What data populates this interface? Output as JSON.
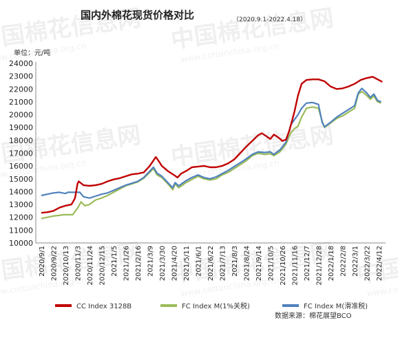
{
  "chart_data": {
    "type": "line",
    "title": "国内外棉花现货价格对比",
    "subtitle": "（2020.9.1-2022.4.18）",
    "ylabel": "单位：元/吨",
    "ylim": [
      10000,
      24000
    ],
    "yticks": [
      10000,
      11000,
      12000,
      13000,
      14000,
      15000,
      16000,
      17000,
      18000,
      19000,
      20000,
      21000,
      22000,
      23000,
      24000
    ],
    "x_tick_labels": [
      "2020/9/1",
      "2020/9/22",
      "2020/10/13",
      "2020/11/3",
      "2020/11/24",
      "2020/12/15",
      "2021/1/5",
      "2021/1/26",
      "2021/2/16",
      "2021/3/9",
      "2021/3/30",
      "2021/4/20",
      "2021/5/11",
      "2021/6/1",
      "2021/6/22",
      "2021/7/13",
      "2021/8/3",
      "2021/8/24",
      "2021/9/14",
      "2021/10/5",
      "2021/10/26",
      "2021/11/16",
      "2021/12/7",
      "2021/12/28",
      "2022/1/18",
      "2022/2/8",
      "2022/3/1",
      "2022/3/22",
      "2022/4/12"
    ],
    "legend_position": "bottom",
    "grid": false,
    "series": [
      {
        "name": "CC Index 3128B",
        "color": "#c00000",
        "points": [
          [
            0,
            12350
          ],
          [
            0.5,
            12400
          ],
          [
            1,
            12500
          ],
          [
            1.5,
            12750
          ],
          [
            2,
            12900
          ],
          [
            2.5,
            13000
          ],
          [
            2.8,
            13500
          ],
          [
            3,
            14600
          ],
          [
            3.1,
            14800
          ],
          [
            3.5,
            14500
          ],
          [
            4,
            14450
          ],
          [
            4.5,
            14500
          ],
          [
            5,
            14600
          ],
          [
            5.5,
            14800
          ],
          [
            6,
            14950
          ],
          [
            6.5,
            15050
          ],
          [
            7,
            15200
          ],
          [
            7.5,
            15350
          ],
          [
            8,
            15400
          ],
          [
            8.5,
            15500
          ],
          [
            9,
            16000
          ],
          [
            9.5,
            16700
          ],
          [
            9.8,
            16300
          ],
          [
            10,
            16000
          ],
          [
            10.5,
            15600
          ],
          [
            11,
            15300
          ],
          [
            11.3,
            15100
          ],
          [
            11.6,
            15400
          ],
          [
            12,
            15600
          ],
          [
            12.5,
            15900
          ],
          [
            13,
            15950
          ],
          [
            13.5,
            16000
          ],
          [
            14,
            15900
          ],
          [
            14.5,
            15900
          ],
          [
            15,
            16000
          ],
          [
            15.5,
            16200
          ],
          [
            16,
            16500
          ],
          [
            16.5,
            17000
          ],
          [
            17,
            17500
          ],
          [
            17.5,
            17950
          ],
          [
            18,
            18400
          ],
          [
            18.3,
            18550
          ],
          [
            18.7,
            18300
          ],
          [
            19,
            18100
          ],
          [
            19.3,
            18450
          ],
          [
            19.7,
            18200
          ],
          [
            20,
            17950
          ],
          [
            20.3,
            18050
          ],
          [
            20.6,
            18800
          ],
          [
            21,
            20200
          ],
          [
            21.3,
            21500
          ],
          [
            21.6,
            22400
          ],
          [
            22,
            22700
          ],
          [
            22.5,
            22750
          ],
          [
            23,
            22750
          ],
          [
            23.5,
            22600
          ],
          [
            24,
            22200
          ],
          [
            24.5,
            22000
          ],
          [
            25,
            22050
          ],
          [
            25.5,
            22200
          ],
          [
            26,
            22400
          ],
          [
            26.5,
            22700
          ],
          [
            27,
            22850
          ],
          [
            27.5,
            22950
          ],
          [
            28,
            22700
          ],
          [
            28.3,
            22550
          ]
        ]
      },
      {
        "name": "FC Index M(1%关税)",
        "color": "#9bbb59",
        "points": [
          [
            0,
            11900
          ],
          [
            0.5,
            12000
          ],
          [
            1,
            12100
          ],
          [
            1.5,
            12150
          ],
          [
            1.8,
            12200
          ],
          [
            2.6,
            12200
          ],
          [
            3,
            12700
          ],
          [
            3.3,
            13200
          ],
          [
            3.6,
            12900
          ],
          [
            4,
            13000
          ],
          [
            4.5,
            13350
          ],
          [
            5,
            13500
          ],
          [
            5.5,
            13700
          ],
          [
            6,
            13950
          ],
          [
            6.5,
            14200
          ],
          [
            7,
            14450
          ],
          [
            7.5,
            14600
          ],
          [
            8,
            14750
          ],
          [
            8.5,
            15050
          ],
          [
            9,
            15500
          ],
          [
            9.3,
            15800
          ],
          [
            9.6,
            15300
          ],
          [
            10,
            15100
          ],
          [
            10.3,
            14800
          ],
          [
            10.6,
            14500
          ],
          [
            10.9,
            14150
          ],
          [
            11.1,
            14600
          ],
          [
            11.4,
            14300
          ],
          [
            11.7,
            14500
          ],
          [
            12,
            14700
          ],
          [
            12.5,
            14950
          ],
          [
            13,
            15200
          ],
          [
            13.5,
            15000
          ],
          [
            14,
            14900
          ],
          [
            14.5,
            15000
          ],
          [
            15,
            15300
          ],
          [
            15.5,
            15500
          ],
          [
            16,
            15800
          ],
          [
            16.5,
            16100
          ],
          [
            17,
            16400
          ],
          [
            17.5,
            16800
          ],
          [
            18,
            17000
          ],
          [
            18.5,
            16900
          ],
          [
            19,
            16950
          ],
          [
            19.3,
            16800
          ],
          [
            19.8,
            17100
          ],
          [
            20.3,
            17700
          ],
          [
            20.7,
            18600
          ],
          [
            21,
            18900
          ],
          [
            21.3,
            19100
          ],
          [
            21.6,
            19800
          ],
          [
            22,
            20500
          ],
          [
            22.5,
            20600
          ],
          [
            23,
            20500
          ],
          [
            23.3,
            19500
          ],
          [
            23.5,
            19000
          ],
          [
            24,
            19350
          ],
          [
            24.5,
            19700
          ],
          [
            25,
            19900
          ],
          [
            25.5,
            20200
          ],
          [
            26,
            20500
          ],
          [
            26.3,
            21600
          ],
          [
            26.6,
            21800
          ],
          [
            27,
            21500
          ],
          [
            27.3,
            21200
          ],
          [
            27.6,
            21450
          ],
          [
            27.9,
            21000
          ],
          [
            28.2,
            20900
          ]
        ]
      },
      {
        "name": "FC Index M(滑准税)",
        "color": "#4f81bd",
        "points": [
          [
            0,
            13700
          ],
          [
            0.5,
            13800
          ],
          [
            1,
            13900
          ],
          [
            1.5,
            13950
          ],
          [
            2,
            13850
          ],
          [
            2.2,
            13950
          ],
          [
            3.2,
            13950
          ],
          [
            3.5,
            13600
          ],
          [
            4,
            13500
          ],
          [
            4.5,
            13650
          ],
          [
            5,
            13800
          ],
          [
            5.5,
            13900
          ],
          [
            6,
            14100
          ],
          [
            6.5,
            14300
          ],
          [
            7,
            14500
          ],
          [
            7.5,
            14650
          ],
          [
            8,
            14800
          ],
          [
            8.5,
            15100
          ],
          [
            9,
            15600
          ],
          [
            9.3,
            15900
          ],
          [
            9.6,
            15450
          ],
          [
            10,
            15200
          ],
          [
            10.3,
            14900
          ],
          [
            10.6,
            14600
          ],
          [
            10.9,
            14300
          ],
          [
            11.1,
            14700
          ],
          [
            11.4,
            14450
          ],
          [
            11.7,
            14650
          ],
          [
            12,
            14850
          ],
          [
            12.5,
            15100
          ],
          [
            13,
            15300
          ],
          [
            13.5,
            15100
          ],
          [
            14,
            15000
          ],
          [
            14.5,
            15150
          ],
          [
            15,
            15400
          ],
          [
            15.5,
            15650
          ],
          [
            16,
            15950
          ],
          [
            16.5,
            16250
          ],
          [
            17,
            16550
          ],
          [
            17.5,
            16900
          ],
          [
            18,
            17100
          ],
          [
            18.5,
            17050
          ],
          [
            19,
            17100
          ],
          [
            19.3,
            16900
          ],
          [
            19.8,
            17250
          ],
          [
            20.3,
            17850
          ],
          [
            20.7,
            19200
          ],
          [
            21,
            19600
          ],
          [
            21.3,
            20000
          ],
          [
            21.6,
            20500
          ],
          [
            22,
            20900
          ],
          [
            22.5,
            20950
          ],
          [
            23,
            20800
          ],
          [
            23.3,
            19400
          ],
          [
            23.5,
            19050
          ],
          [
            24,
            19400
          ],
          [
            24.5,
            19800
          ],
          [
            25,
            20100
          ],
          [
            25.5,
            20400
          ],
          [
            26,
            20700
          ],
          [
            26.3,
            21700
          ],
          [
            26.6,
            22050
          ],
          [
            27,
            21700
          ],
          [
            27.3,
            21350
          ],
          [
            27.6,
            21600
          ],
          [
            27.9,
            21100
          ],
          [
            28.2,
            21000
          ]
        ]
      }
    ],
    "source": "数据来源：棉花展望BCO",
    "watermark": {
      "brand": "中国棉花信息网",
      "url": "www.cottonchina.org.cn"
    }
  }
}
